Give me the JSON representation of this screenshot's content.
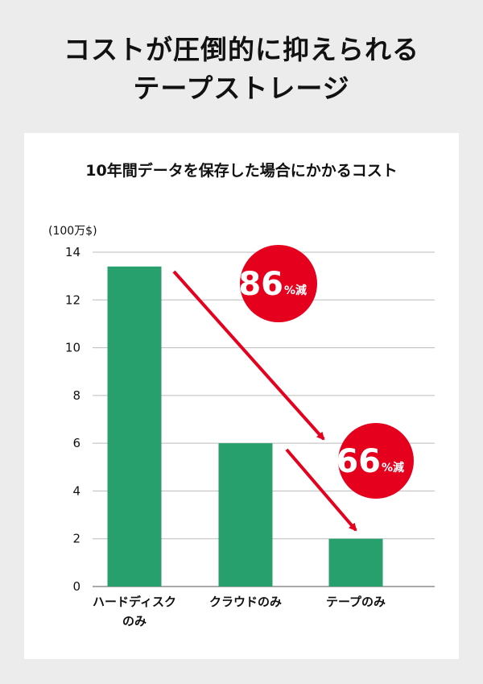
{
  "header": {
    "title_line1": "コストが圧倒的に抑えられる",
    "title_line2": "テープストレージ"
  },
  "chart_data": {
    "type": "bar",
    "title": "10年間データを保存した場合にかかるコスト",
    "unit_label": "(100万$)",
    "categories": [
      [
        "ハードディスク",
        "のみ"
      ],
      [
        "クラウドのみ"
      ],
      [
        "テープのみ"
      ]
    ],
    "values": [
      13.4,
      6.0,
      2.0
    ],
    "ylim": [
      0,
      14
    ],
    "yticks": [
      0,
      2,
      4,
      6,
      8,
      10,
      12,
      14
    ],
    "grid": true,
    "bar_color": "#27a06e",
    "annotations": [
      {
        "value": "86",
        "suffix": "%減",
        "from": 0,
        "to": 2
      },
      {
        "value": "66",
        "suffix": "%減",
        "from": 1,
        "to": 2
      }
    ],
    "annotation_color": "#e5001e"
  }
}
